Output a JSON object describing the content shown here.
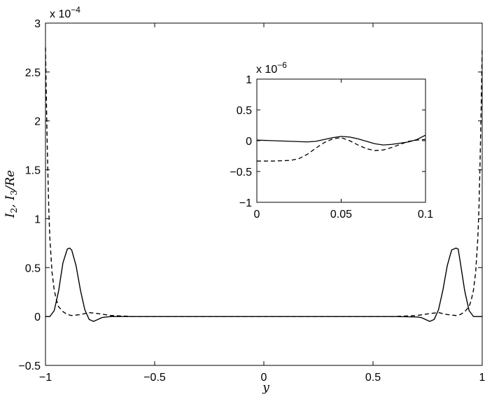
{
  "chart_data": [
    {
      "type": "line",
      "role": "main",
      "xlabel": "y",
      "ylabel": "I2, I3/Re",
      "xlim": [
        -1,
        1
      ],
      "ylim": [
        -0.5,
        3
      ],
      "xticks": [
        -1,
        -0.5,
        0,
        0.5,
        1
      ],
      "xtick_labels": [
        "−1",
        "−0.5",
        "0",
        "0.5",
        "1"
      ],
      "yticks": [
        -0.5,
        0,
        0.5,
        1,
        1.5,
        2,
        2.5,
        3
      ],
      "ytick_labels": [
        "−0.5",
        "0",
        "0.5",
        "1",
        "1.5",
        "2",
        "2.5",
        "3"
      ],
      "y_multiplier": "x 10",
      "y_exponent": "−4",
      "grid": false,
      "series": [
        {
          "style": "solid",
          "x": [
            -1,
            -0.98,
            -0.96,
            -0.94,
            -0.92,
            -0.9,
            -0.89,
            -0.88,
            -0.86,
            -0.84,
            -0.82,
            -0.8,
            -0.78,
            -0.76,
            -0.74,
            -0.72,
            -0.7,
            -0.6,
            -0.4,
            0,
            0.4,
            0.6,
            0.7,
            0.72,
            0.74,
            0.76,
            0.78,
            0.8,
            0.82,
            0.84,
            0.86,
            0.88,
            0.89,
            0.9,
            0.92,
            0.94,
            0.96,
            0.98,
            1
          ],
          "y": [
            0,
            0,
            0.06,
            0.26,
            0.55,
            0.69,
            0.7,
            0.68,
            0.52,
            0.27,
            0.07,
            -0.03,
            -0.05,
            -0.03,
            -0.01,
            -0.005,
            0,
            0,
            0,
            0,
            0,
            0,
            -0.005,
            -0.01,
            -0.03,
            -0.05,
            -0.03,
            0.07,
            0.27,
            0.52,
            0.68,
            0.7,
            0.69,
            0.55,
            0.26,
            0.06,
            0,
            0,
            0
          ]
        },
        {
          "style": "dashed",
          "x": [
            -1,
            -0.995,
            -0.99,
            -0.985,
            -0.98,
            -0.97,
            -0.96,
            -0.95,
            -0.94,
            -0.92,
            -0.9,
            -0.88,
            -0.84,
            -0.8,
            -0.76,
            -0.7,
            -0.6,
            -0.4,
            0,
            0.4,
            0.6,
            0.7,
            0.76,
            0.8,
            0.84,
            0.88,
            0.9,
            0.92,
            0.94,
            0.95,
            0.96,
            0.97,
            0.98,
            0.985,
            0.99,
            0.995,
            1
          ],
          "y": [
            2.75,
            2.1,
            1.55,
            1.1,
            0.8,
            0.45,
            0.27,
            0.17,
            0.1,
            0.05,
            0.02,
            0.01,
            0.02,
            0.04,
            0.03,
            0.01,
            0,
            0,
            0,
            0,
            0,
            0.01,
            0.03,
            0.04,
            0.02,
            0.01,
            0.02,
            0.05,
            0.1,
            0.17,
            0.27,
            0.45,
            0.8,
            1.1,
            1.55,
            2.1,
            2.75
          ]
        }
      ]
    },
    {
      "type": "line",
      "role": "inset",
      "xlim": [
        0,
        0.1
      ],
      "ylim": [
        -1,
        1
      ],
      "xticks": [
        0,
        0.05,
        0.1
      ],
      "xtick_labels": [
        "0",
        "0.05",
        "0.1"
      ],
      "yticks": [
        -1,
        -0.5,
        0,
        0.5,
        1
      ],
      "ytick_labels": [
        "−1",
        "−0.5",
        "0",
        "0.5",
        "1"
      ],
      "y_multiplier": "x 10",
      "y_exponent": "−6",
      "grid": false,
      "series": [
        {
          "style": "solid",
          "x": [
            0,
            0.01,
            0.02,
            0.03,
            0.035,
            0.04,
            0.045,
            0.05,
            0.055,
            0.06,
            0.065,
            0.07,
            0.075,
            0.08,
            0.085,
            0.09,
            0.095,
            0.1
          ],
          "y": [
            0.01,
            0.0,
            -0.01,
            -0.02,
            -0.01,
            0.02,
            0.05,
            0.07,
            0.06,
            0.03,
            -0.01,
            -0.05,
            -0.07,
            -0.06,
            -0.04,
            -0.02,
            0.02,
            0.09
          ]
        },
        {
          "style": "dashed",
          "x": [
            0,
            0.01,
            0.02,
            0.025,
            0.03,
            0.035,
            0.04,
            0.045,
            0.05,
            0.055,
            0.06,
            0.065,
            0.07,
            0.075,
            0.08,
            0.085,
            0.09,
            0.095,
            0.1
          ],
          "y": [
            -0.33,
            -0.33,
            -0.32,
            -0.29,
            -0.22,
            -0.12,
            -0.03,
            0.03,
            0.05,
            0.0,
            -0.07,
            -0.13,
            -0.16,
            -0.15,
            -0.11,
            -0.06,
            -0.01,
            0.01,
            0.02
          ]
        }
      ]
    }
  ]
}
